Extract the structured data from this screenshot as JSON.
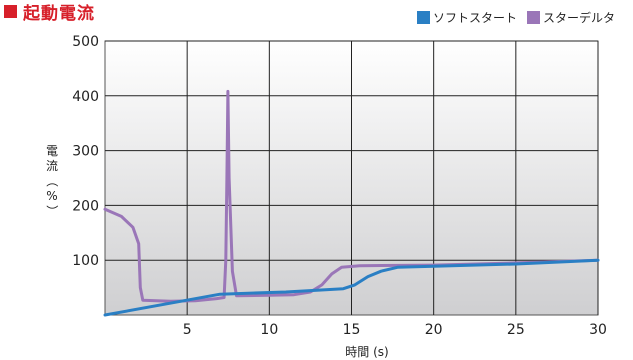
{
  "chart_data": {
    "type": "line",
    "title": "起動電流",
    "xlabel": "時間 (s)",
    "ylabel": "電流（%）",
    "xlim": [
      0,
      30
    ],
    "ylim": [
      0,
      500
    ],
    "x_ticks": [
      5,
      10,
      15,
      20,
      25,
      30
    ],
    "y_ticks": [
      100,
      200,
      300,
      400,
      500
    ],
    "grid": true,
    "legend_position": "top-right",
    "series": [
      {
        "name": "ソフトスタート",
        "color": "#2a7fc4",
        "points": [
          [
            0,
            0
          ],
          [
            7,
            38
          ],
          [
            11,
            42
          ],
          [
            14.5,
            48
          ],
          [
            15.2,
            55
          ],
          [
            16.0,
            70
          ],
          [
            16.8,
            80
          ],
          [
            17.8,
            87
          ],
          [
            20,
            89
          ],
          [
            25,
            93
          ],
          [
            30,
            100
          ]
        ]
      },
      {
        "name": "スターデルタ",
        "color": "#9a76b8",
        "points": [
          [
            0,
            193
          ],
          [
            1.0,
            180
          ],
          [
            1.7,
            160
          ],
          [
            2.05,
            130
          ],
          [
            2.15,
            50
          ],
          [
            2.3,
            27
          ],
          [
            4,
            25
          ],
          [
            5.5,
            26
          ],
          [
            6.8,
            30
          ],
          [
            7.25,
            32
          ],
          [
            7.35,
            100
          ],
          [
            7.42,
            250
          ],
          [
            7.48,
            408
          ],
          [
            7.55,
            250
          ],
          [
            7.75,
            80
          ],
          [
            8.0,
            35
          ],
          [
            10,
            36
          ],
          [
            11.5,
            37
          ],
          [
            12.5,
            42
          ],
          [
            13.2,
            55
          ],
          [
            13.8,
            75
          ],
          [
            14.4,
            87
          ],
          [
            15.5,
            90
          ],
          [
            20,
            91
          ],
          [
            25,
            95
          ],
          [
            30,
            100
          ]
        ]
      }
    ]
  }
}
